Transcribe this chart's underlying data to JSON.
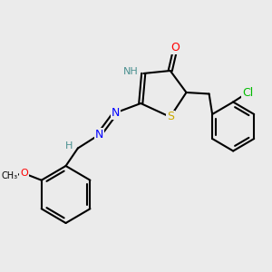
{
  "background_color": "#ebebeb",
  "atom_colors": {
    "O": "#ff0000",
    "N": "#0000ff",
    "S": "#ccaa00",
    "Cl": "#00bb00",
    "H": "#4a9090",
    "C": "#000000"
  },
  "bond_color": "#000000",
  "bond_width": 1.5,
  "font_size_atom": 9,
  "font_size_h": 8,
  "xlim": [
    0,
    10
  ],
  "ylim": [
    0,
    10
  ]
}
